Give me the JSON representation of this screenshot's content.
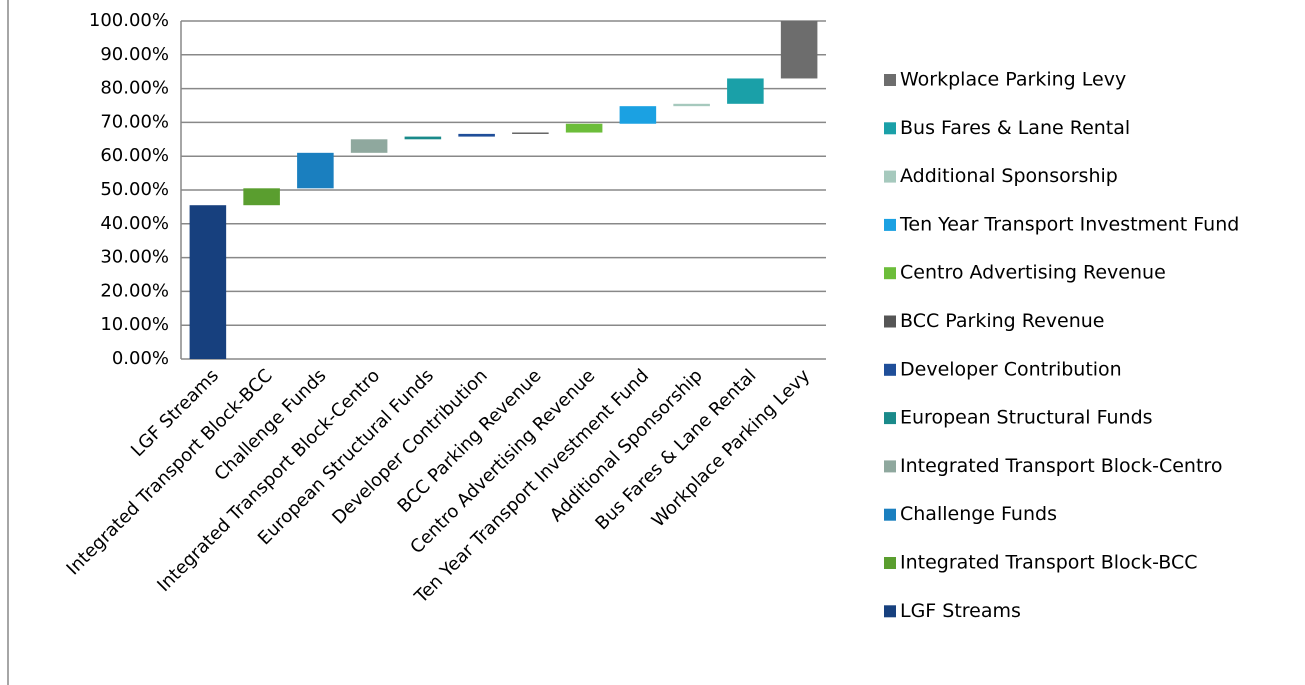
{
  "chart_data": {
    "type": "waterfall",
    "categories": [
      "LGF Streams",
      "Integrated Transport Block-BCC",
      "Challenge Funds",
      "Integrated Transport Block-Centro",
      "European Structural Funds",
      "Developer Contribution",
      "BCC Parking Revenue",
      "Centro Advertising Revenue",
      "Ten Year Transport Investment Fund",
      "Additional Sponsorship",
      "Bus Fares & Lane Rental",
      "Workplace Parking Levy"
    ],
    "values": [
      45.5,
      5,
      10.5,
      4,
      0.8,
      0.8,
      0.4,
      2.6,
      5.2,
      0.7,
      7.5,
      17
    ],
    "colors": [
      "#17407e",
      "#5a9e2f",
      "#1a7fbf",
      "#8fa89e",
      "#1a8a8a",
      "#1f4e99",
      "#555555",
      "#6cbd3a",
      "#1ba1e2",
      "#a6c9bd",
      "#1aa0a8",
      "#6d6d6d"
    ],
    "ylim": [
      0,
      100
    ],
    "yticks": [
      {
        "value": 0,
        "label": "0.00%"
      },
      {
        "value": 10,
        "label": "10.00%"
      },
      {
        "value": 20,
        "label": "20.00%"
      },
      {
        "value": 30,
        "label": "30.00%"
      },
      {
        "value": 40,
        "label": "40.00%"
      },
      {
        "value": 50,
        "label": "50.00%"
      },
      {
        "value": 60,
        "label": "60.00%"
      },
      {
        "value": 70,
        "label": "70.00%"
      },
      {
        "value": 80,
        "label": "80.00%"
      },
      {
        "value": 90,
        "label": "90.00%"
      },
      {
        "value": 100,
        "label": "100.00%"
      }
    ],
    "grid": true,
    "legend": "right"
  }
}
